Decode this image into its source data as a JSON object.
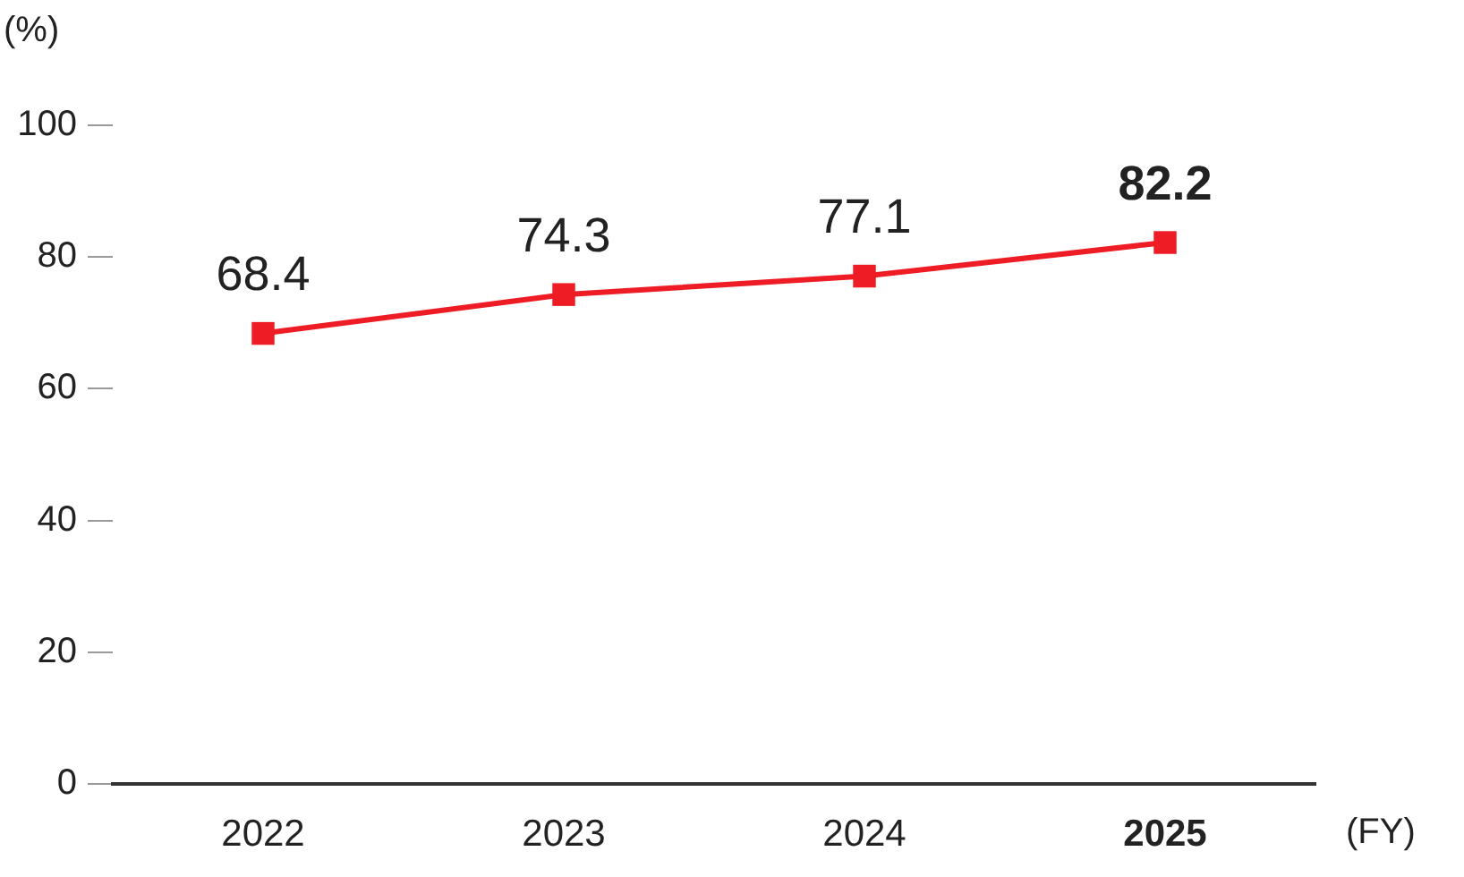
{
  "chart_data": {
    "type": "line",
    "ylabel": "(%)",
    "xlabel": "(FY)",
    "categories": [
      "2022",
      "2023",
      "2024",
      "2025"
    ],
    "series": [
      {
        "color": "#ee1c25",
        "values": [
          68.4,
          74.3,
          77.1,
          82.2
        ]
      }
    ],
    "ylim": [
      0,
      100
    ],
    "yticks": [
      0,
      20,
      40,
      60,
      80,
      100
    ],
    "marker": "square",
    "line_style": "solid",
    "data_labels": true,
    "grid": false,
    "legend": false
  }
}
